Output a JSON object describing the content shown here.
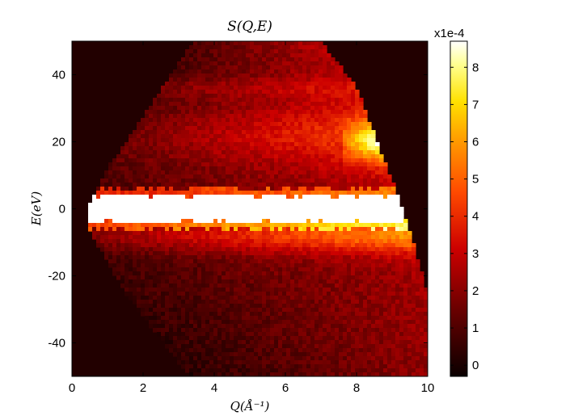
{
  "chart_data": {
    "type": "heatmap",
    "title": "S(Q,E)",
    "xlabel": "Q(Å⁻¹)",
    "ylabel": "E(eV)",
    "xlim": [
      0,
      10
    ],
    "ylim": [
      -50,
      50
    ],
    "xticks": [
      "0",
      "2",
      "4",
      "6",
      "8",
      "10"
    ],
    "xtick_values": [
      0,
      2,
      4,
      6,
      8,
      10
    ],
    "yticks": [
      "40",
      "20",
      "0",
      "-20",
      "-40"
    ],
    "ytick_values": [
      40,
      20,
      0,
      -20,
      -40
    ],
    "colormap": "hot",
    "colorbar": {
      "multiplier_label": "x1e-4",
      "range": [
        -0.3,
        8.7
      ],
      "ticks": [
        "0",
        "1",
        "2",
        "3",
        "4",
        "5",
        "6",
        "7",
        "8"
      ],
      "tick_values": [
        0,
        1,
        2,
        3,
        4,
        5,
        6,
        7,
        8
      ]
    },
    "background_color": "#220000",
    "grid": false,
    "description_features": {
      "elastic_line_E": 0,
      "elastic_line_halfwidth_eV": 4,
      "elastic_line_intensity": 8.7,
      "coverage_left_edge": [
        [
          0.4,
          0
        ],
        [
          1.0,
          12
        ],
        [
          3.4,
          50
        ],
        [
          0.4,
          -5
        ],
        [
          1.5,
          -25
        ],
        [
          3.3,
          -50
        ]
      ],
      "coverage_right_edge": [
        [
          7.0,
          50
        ],
        [
          8.0,
          36
        ],
        [
          9.3,
          0
        ],
        [
          10.0,
          -25
        ],
        [
          10.0,
          -50
        ]
      ]
    }
  }
}
